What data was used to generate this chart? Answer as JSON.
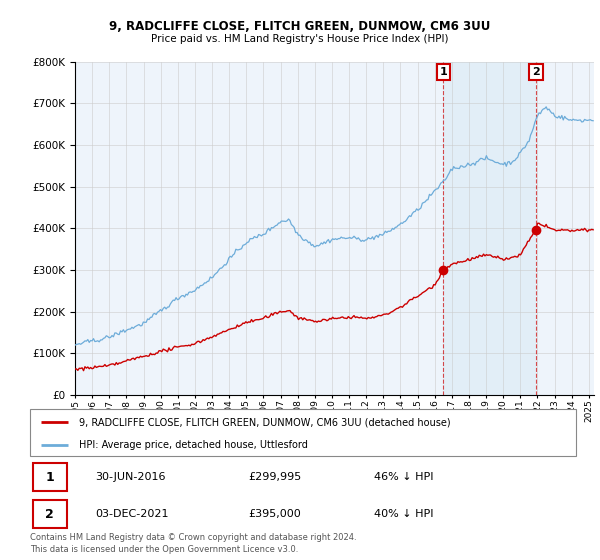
{
  "title": "9, RADCLIFFE CLOSE, FLITCH GREEN, DUNMOW, CM6 3UU",
  "subtitle": "Price paid vs. HM Land Registry's House Price Index (HPI)",
  "hpi_color": "#6dacd9",
  "hpi_fill_color": "#daeaf5",
  "price_color": "#cc0000",
  "annotation1_label": "1",
  "annotation1_date": "30-JUN-2016",
  "annotation1_price": 299995,
  "annotation1_price_str": "£299,995",
  "annotation1_pct": "46% ↓ HPI",
  "annotation1_year": 2016.5,
  "annotation1_value": 299995,
  "annotation2_label": "2",
  "annotation2_date": "03-DEC-2021",
  "annotation2_price": 395000,
  "annotation2_price_str": "£395,000",
  "annotation2_pct": "40% ↓ HPI",
  "annotation2_year": 2021.92,
  "annotation2_value": 395000,
  "legend_label1": "9, RADCLIFFE CLOSE, FLITCH GREEN, DUNMOW, CM6 3UU (detached house)",
  "legend_label2": "HPI: Average price, detached house, Uttlesford",
  "footer1": "Contains HM Land Registry data © Crown copyright and database right 2024.",
  "footer2": "This data is licensed under the Open Government Licence v3.0.",
  "ylim_max": 800000,
  "xstart": 1995.0,
  "xend": 2025.3,
  "bg_color": "#ffffff",
  "plot_bg_color": "#eef4fb"
}
